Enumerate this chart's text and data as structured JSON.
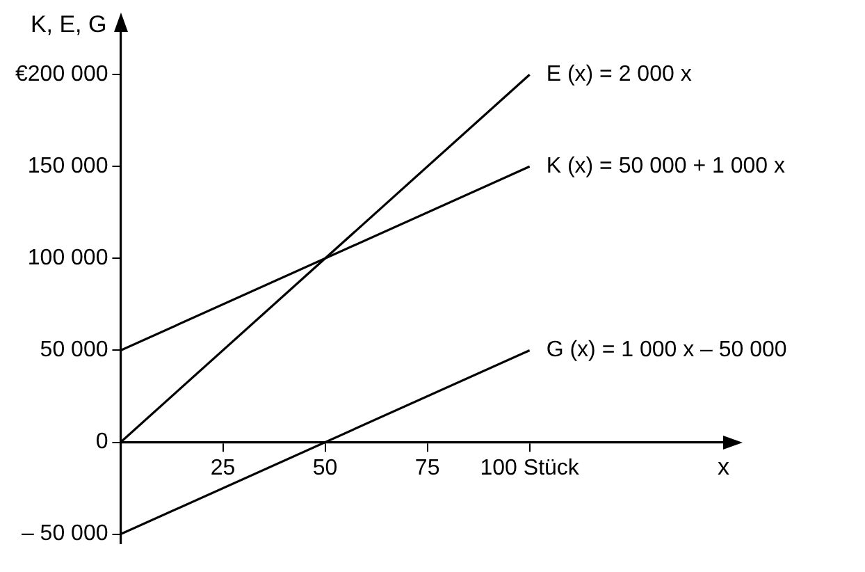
{
  "chart_data": {
    "type": "line",
    "xlabel": "x",
    "ylabel": "K, E, G",
    "xlim": [
      0,
      148
    ],
    "xticks": [
      25,
      50,
      75,
      {
        "value": 100,
        "label": "100 Stück"
      }
    ],
    "ylim": [
      -55000,
      225000
    ],
    "yticks": [
      {
        "value": -50000,
        "label": "– 50 000"
      },
      0,
      {
        "value": 50000,
        "label": "50 000"
      },
      {
        "value": 100000,
        "label": "100 000"
      },
      {
        "value": 150000,
        "label": "150 000"
      },
      {
        "value": 200000,
        "label": "€200 000"
      }
    ],
    "x": [
      0,
      100
    ],
    "series": [
      {
        "name": "E (x) = 2 000 x",
        "color": "#000000",
        "values": [
          0,
          200000
        ]
      },
      {
        "name": "K (x) = 50 000 + 1 000 x",
        "color": "#000000",
        "values": [
          50000,
          150000
        ]
      },
      {
        "name": "G (x) = 1 000 x – 50 000",
        "color": "#000000",
        "values": [
          -50000,
          50000
        ]
      }
    ],
    "grid": false,
    "legend": false,
    "marker": "none",
    "line_style": "solid"
  }
}
